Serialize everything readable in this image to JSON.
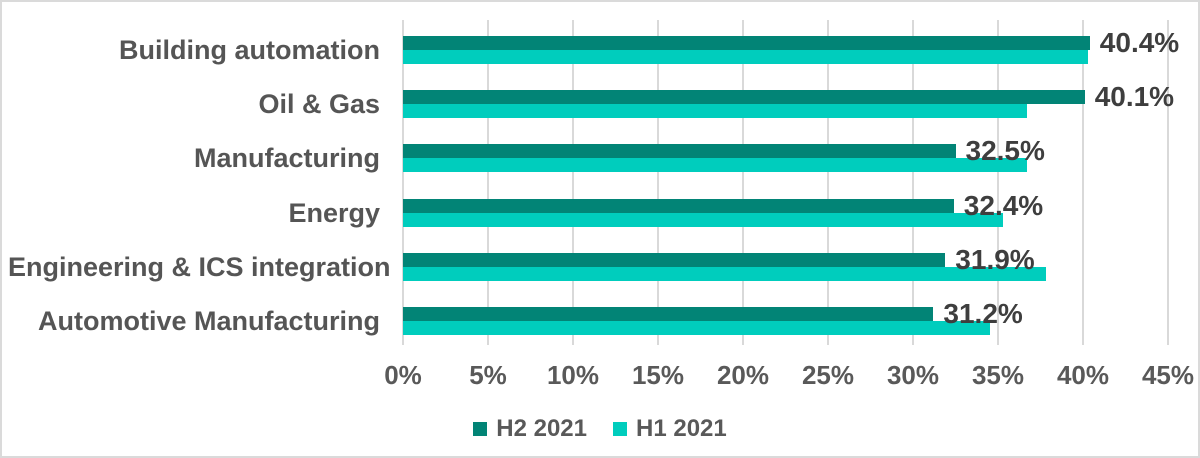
{
  "chart_data": {
    "type": "bar",
    "orientation": "horizontal",
    "title": "",
    "categories": [
      "Building automation",
      "Oil & Gas",
      "Manufacturing",
      "Energy",
      "Engineering & ICS integration",
      "Automotive Manufacturing"
    ],
    "series": [
      {
        "name": "H2 2021",
        "color": "#028476",
        "values": [
          40.4,
          40.1,
          32.5,
          32.4,
          31.9,
          31.2
        ],
        "data_labels": [
          "40.4%",
          "40.1%",
          "32.5%",
          "32.4%",
          "31.9%",
          "31.2%"
        ]
      },
      {
        "name": "H1 2021",
        "color": "#00cdbd",
        "values": [
          40.3,
          36.7,
          36.7,
          35.3,
          37.8,
          34.5
        ],
        "data_labels": []
      }
    ],
    "xlim": [
      0,
      45
    ],
    "x_ticks": [
      "0%",
      "5%",
      "10%",
      "15%",
      "20%",
      "25%",
      "30%",
      "35%",
      "40%",
      "45%"
    ],
    "grid": "vertical",
    "legend_position": "bottom-center"
  },
  "legend": {
    "items": [
      {
        "label": "H2 2021",
        "color": "#028476"
      },
      {
        "label": "H1 2021",
        "color": "#00cdbd"
      }
    ]
  },
  "colors": {
    "h2_2021": "#028476",
    "h1_2021": "#00cdbd",
    "gridline": "#d9d9d9",
    "category_text": "#555555",
    "value_text": "#3e3e3e",
    "tick_text": "#595959",
    "border": "#dadada",
    "background": "#ffffff"
  }
}
